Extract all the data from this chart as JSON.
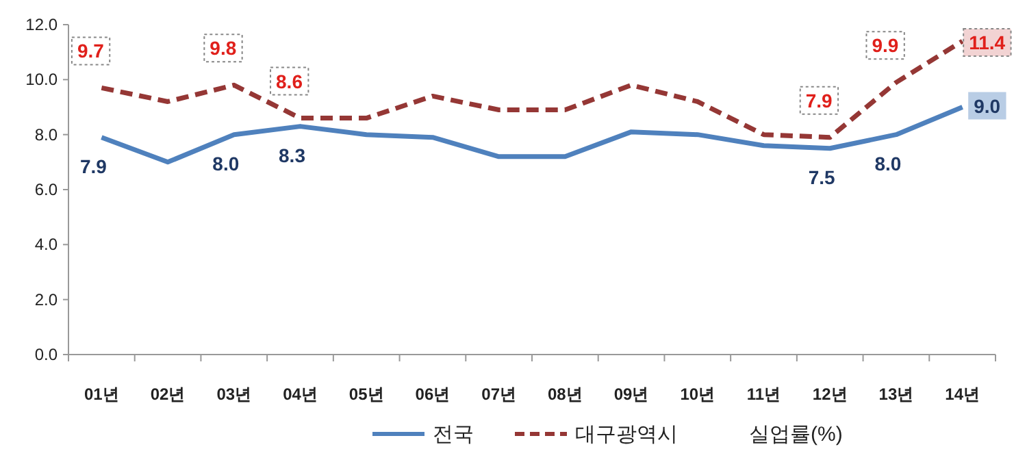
{
  "chart_data": {
    "type": "line",
    "categories": [
      "01년",
      "02년",
      "03년",
      "04년",
      "05년",
      "06년",
      "07년",
      "08년",
      "09년",
      "10년",
      "11년",
      "12년",
      "13년",
      "14년"
    ],
    "series": [
      {
        "name": "전국",
        "color": "#4f81bd",
        "line_style": "solid",
        "values": [
          7.9,
          7.0,
          8.0,
          8.3,
          8.0,
          7.9,
          7.2,
          7.2,
          8.1,
          8.0,
          7.6,
          7.5,
          8.0,
          9.0
        ],
        "value_labels": [
          "7.9",
          null,
          "8.0",
          "8.3",
          null,
          null,
          null,
          null,
          null,
          null,
          null,
          "7.5",
          "8.0",
          "9.0"
        ]
      },
      {
        "name": "대구광역시",
        "color": "#953735",
        "line_style": "dashed",
        "values": [
          9.7,
          9.2,
          9.8,
          8.6,
          8.6,
          9.4,
          8.9,
          8.9,
          9.8,
          9.2,
          8.0,
          7.9,
          9.9,
          11.4
        ],
        "value_labels": [
          "9.7",
          null,
          "9.8",
          "8.6",
          null,
          null,
          null,
          null,
          null,
          null,
          null,
          "7.9",
          "9.9",
          "11.4"
        ]
      }
    ],
    "ylim": [
      0,
      12
    ],
    "yticks": [
      {
        "value": 0,
        "label": "0.0"
      },
      {
        "value": 2,
        "label": "2.0"
      },
      {
        "value": 4,
        "label": "4.0"
      },
      {
        "value": 6,
        "label": "6.0"
      },
      {
        "value": 8,
        "label": "8.0"
      },
      {
        "value": 10,
        "label": "10.0"
      },
      {
        "value": 12,
        "label": "12.0"
      }
    ],
    "grid": false,
    "legend": "bottom",
    "marker": "none",
    "annotations": [
      "실업률(%)"
    ]
  }
}
